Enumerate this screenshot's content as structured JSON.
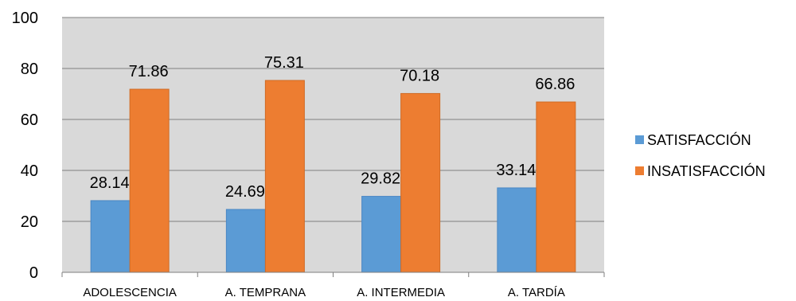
{
  "chart_data": {
    "type": "bar",
    "categories": [
      "ADOLESCENCIA",
      "A. TEMPRANA",
      "A. INTERMEDIA",
      "A. TARDÍA"
    ],
    "series": [
      {
        "name": "SATISFACCIÓN",
        "values": [
          28.14,
          24.69,
          29.82,
          33.14
        ],
        "color": "#5B9BD5"
      },
      {
        "name": "INSATISFACCIÓN",
        "values": [
          71.86,
          75.31,
          70.18,
          66.86
        ],
        "color": "#ED7D31"
      }
    ],
    "value_labels": [
      [
        "28.14",
        "24.69",
        "29.82",
        "33.14"
      ],
      [
        "71.86",
        "75.31",
        "70.18",
        "66.86"
      ]
    ],
    "yticks": [
      "0",
      "20",
      "40",
      "60",
      "80",
      "100"
    ],
    "ylim": [
      0,
      100
    ],
    "grid": true,
    "legend": "right",
    "plot_background": "#D9D9D9",
    "gridline_color": "#7F7F7F"
  }
}
